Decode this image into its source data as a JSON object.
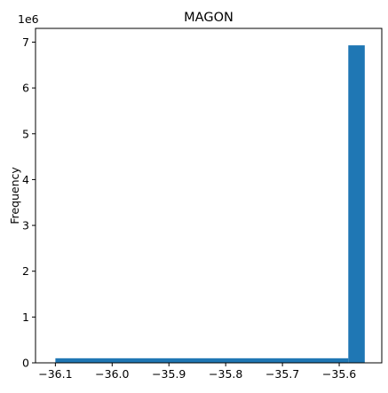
{
  "chart_data": {
    "type": "bar",
    "title": "MAGON",
    "xlabel": "",
    "ylabel": "Frequency",
    "y_offset_label": "1e6",
    "y_scale": 1000000,
    "xlim": [
      -36.135,
      -35.525
    ],
    "ylim": [
      0,
      7300000
    ],
    "x_ticks": [
      -36.1,
      -36.0,
      -35.9,
      -35.8,
      -35.7,
      -35.6
    ],
    "x_tick_labels": [
      "−36.1",
      "−36.0",
      "−35.9",
      "−35.8",
      "−35.7",
      "−35.6"
    ],
    "y_ticks": [
      0,
      1000000,
      2000000,
      3000000,
      4000000,
      5000000,
      6000000,
      7000000
    ],
    "y_tick_labels": [
      "0",
      "1",
      "2",
      "3",
      "4",
      "5",
      "6",
      "7"
    ],
    "bar_color": "#1f77b4",
    "grid": false,
    "bins": [
      {
        "x0": -36.1,
        "x1": -35.584,
        "value": 100000
      },
      {
        "x0": -35.584,
        "x1": -35.555,
        "value": 6930000
      }
    ]
  }
}
